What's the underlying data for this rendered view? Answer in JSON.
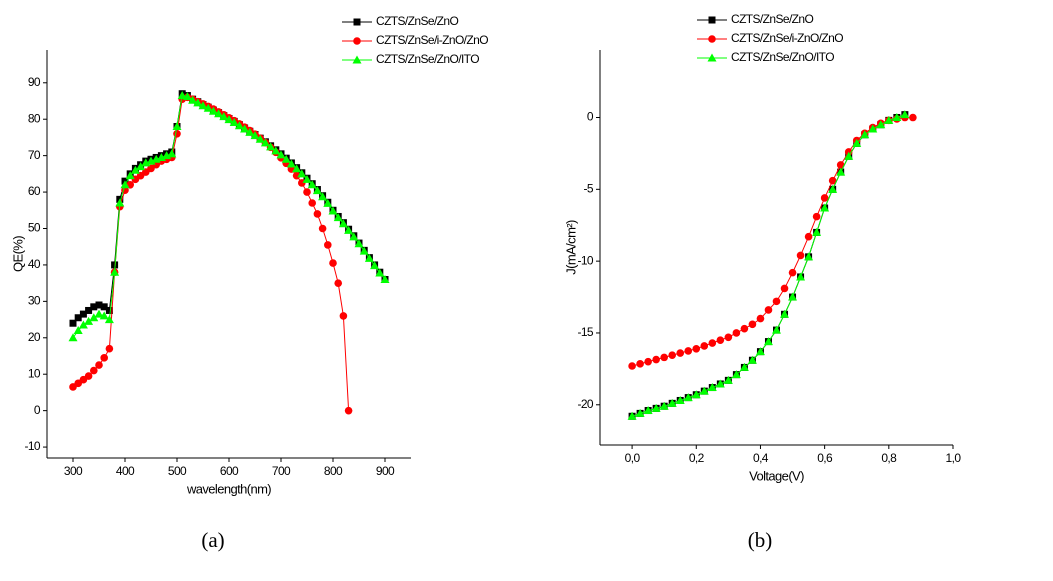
{
  "chart_data": [
    {
      "type": "line",
      "x_label": "wavelength(nm)",
      "y_label": "QE(%)",
      "caption": "(a)",
      "legend": "upper right",
      "x": [
        300,
        310,
        320,
        330,
        340,
        350,
        360,
        370,
        380,
        390,
        400,
        410,
        420,
        430,
        440,
        450,
        460,
        470,
        480,
        490,
        500,
        510,
        520,
        530,
        540,
        550,
        560,
        570,
        580,
        590,
        600,
        610,
        620,
        630,
        640,
        650,
        660,
        670,
        680,
        690,
        700,
        710,
        720,
        730,
        740,
        750,
        760,
        770,
        780,
        790,
        800,
        810,
        820,
        830,
        840,
        850,
        860,
        870,
        880,
        890,
        900
      ],
      "xlim": [
        250,
        950
      ],
      "xticks": [
        300,
        400,
        500,
        600,
        700,
        800,
        900
      ],
      "ylim": [
        -13,
        99
      ],
      "yticks": [
        -10,
        0,
        10,
        20,
        30,
        40,
        50,
        60,
        70,
        80,
        90
      ],
      "series": [
        {
          "name": "CZTS/ZnSe/ZnO",
          "color": "#000000",
          "marker": "square",
          "values": [
            24,
            25.5,
            26.5,
            27.5,
            28.5,
            29,
            28.5,
            27.5,
            40,
            58,
            63,
            65,
            66.5,
            67.5,
            68.5,
            69,
            69.5,
            70,
            70.5,
            71,
            78,
            87,
            86.5,
            85.5,
            84.8,
            84,
            83.3,
            82.5,
            81.8,
            81,
            80.2,
            79.4,
            78.5,
            77.6,
            76.7,
            75.8,
            74.8,
            73.8,
            72.7,
            71.6,
            70.5,
            69.3,
            68,
            66.7,
            65.3,
            63.8,
            62.3,
            60.7,
            59,
            57.2,
            55,
            53.3,
            51.6,
            49.8,
            48,
            46,
            44,
            42,
            40,
            38,
            36
          ]
        },
        {
          "name": "CZTS/ZnSe/i-ZnO/ZnO",
          "color": "#ff0000",
          "marker": "circle",
          "values": [
            6.5,
            7.5,
            8.5,
            9.5,
            11,
            12.5,
            14.5,
            17,
            38,
            56,
            60.5,
            62,
            63.5,
            64.5,
            65.5,
            66.5,
            67.5,
            68.5,
            69,
            69.5,
            76,
            85.5,
            86,
            85.5,
            84.8,
            84.2,
            83.5,
            82.8,
            82,
            81.2,
            80.4,
            79.6,
            78.7,
            77.8,
            76.9,
            75.9,
            74.8,
            73.6,
            72.3,
            70.9,
            69.4,
            67.9,
            66.3,
            64.5,
            62.5,
            60,
            57,
            54,
            50,
            45.5,
            40.5,
            35,
            26,
            0,
            null,
            null,
            null,
            null,
            null,
            null,
            null
          ]
        },
        {
          "name": "CZTS/ZnSe/ZnO/ITO",
          "color": "#00ff00",
          "marker": "triangle",
          "values": [
            20,
            22,
            23.5,
            24.5,
            25.5,
            26.5,
            26,
            25,
            38,
            57,
            62,
            64.5,
            66,
            67,
            68,
            68.5,
            69,
            69.5,
            70,
            70.5,
            78,
            86.5,
            86.2,
            85.2,
            84.5,
            83.7,
            83,
            82.2,
            81.5,
            80.7,
            79.9,
            79.1,
            78.2,
            77.3,
            76.4,
            75.5,
            74.5,
            73.5,
            72.4,
            71.3,
            70.2,
            69,
            67.7,
            66.4,
            65,
            63.5,
            62,
            60.4,
            58.7,
            56.9,
            54.8,
            53,
            51.3,
            49.5,
            47.7,
            45.8,
            43.8,
            41.8,
            39.8,
            37.8,
            36
          ]
        }
      ]
    },
    {
      "type": "line",
      "x_label": "Voltage(V)",
      "y_label": "J(mA/cm²)",
      "caption": "(b)",
      "legend": "upper right",
      "x": [
        0,
        0.025,
        0.05,
        0.075,
        0.1,
        0.125,
        0.15,
        0.175,
        0.2,
        0.225,
        0.25,
        0.275,
        0.3,
        0.325,
        0.35,
        0.375,
        0.4,
        0.425,
        0.45,
        0.475,
        0.5,
        0.525,
        0.55,
        0.575,
        0.6,
        0.625,
        0.65,
        0.675,
        0.7,
        0.725,
        0.75,
        0.775,
        0.8,
        0.825,
        0.85,
        0.875
      ],
      "xlim": [
        -0.1,
        1.0
      ],
      "xticks": [
        {
          "value": 0,
          "label": "0,0"
        },
        {
          "value": 0.2,
          "label": "0,2"
        },
        {
          "value": 0.4,
          "label": "0,4"
        },
        {
          "value": 0.6,
          "label": "0,6"
        },
        {
          "value": 0.8,
          "label": "0,8"
        },
        {
          "value": 1.0,
          "label": "1,0"
        }
      ],
      "ylim": [
        -22.8,
        4.7
      ],
      "yticks": [
        -20,
        -15,
        -10,
        -5,
        0
      ],
      "series": [
        {
          "name": "CZTS/ZnSe/ZnO",
          "color": "#000000",
          "marker": "square",
          "values": [
            -20.8,
            -20.6,
            -20.4,
            -20.25,
            -20.1,
            -19.9,
            -19.7,
            -19.5,
            -19.3,
            -19.05,
            -18.8,
            -18.55,
            -18.3,
            -17.9,
            -17.4,
            -16.9,
            -16.3,
            -15.6,
            -14.8,
            -13.7,
            -12.5,
            -11.1,
            -9.7,
            -8,
            -6.3,
            -5,
            -3.8,
            -2.7,
            -1.8,
            -1.2,
            -0.8,
            -0.5,
            -0.2,
            0,
            0.2,
            null
          ]
        },
        {
          "name": "CZTS/ZnSe/i-ZnO/ZnO",
          "color": "#ff0000",
          "marker": "circle",
          "values": [
            -17.3,
            -17.15,
            -17,
            -16.85,
            -16.7,
            -16.55,
            -16.4,
            -16.25,
            -16.1,
            -15.9,
            -15.7,
            -15.5,
            -15.3,
            -15,
            -14.7,
            -14.4,
            -14,
            -13.4,
            -12.8,
            -11.9,
            -10.8,
            -9.6,
            -8.3,
            -6.9,
            -5.6,
            -4.4,
            -3.3,
            -2.4,
            -1.6,
            -1.1,
            -0.7,
            -0.4,
            -0.2,
            -0.1,
            0,
            0
          ]
        },
        {
          "name": "CZTS/ZnSe/ZnO/ITO",
          "color": "#00ff00",
          "marker": "triangle",
          "values": [
            -20.8,
            -20.6,
            -20.4,
            -20.25,
            -20.1,
            -19.9,
            -19.7,
            -19.5,
            -19.3,
            -19.05,
            -18.8,
            -18.55,
            -18.3,
            -17.9,
            -17.4,
            -16.9,
            -16.3,
            -15.6,
            -14.8,
            -13.7,
            -12.5,
            -11.1,
            -9.7,
            -8,
            -6.3,
            -5,
            -3.8,
            -2.7,
            -1.8,
            -1.2,
            -0.8,
            -0.5,
            -0.2,
            0,
            0.2,
            null
          ]
        }
      ]
    }
  ]
}
